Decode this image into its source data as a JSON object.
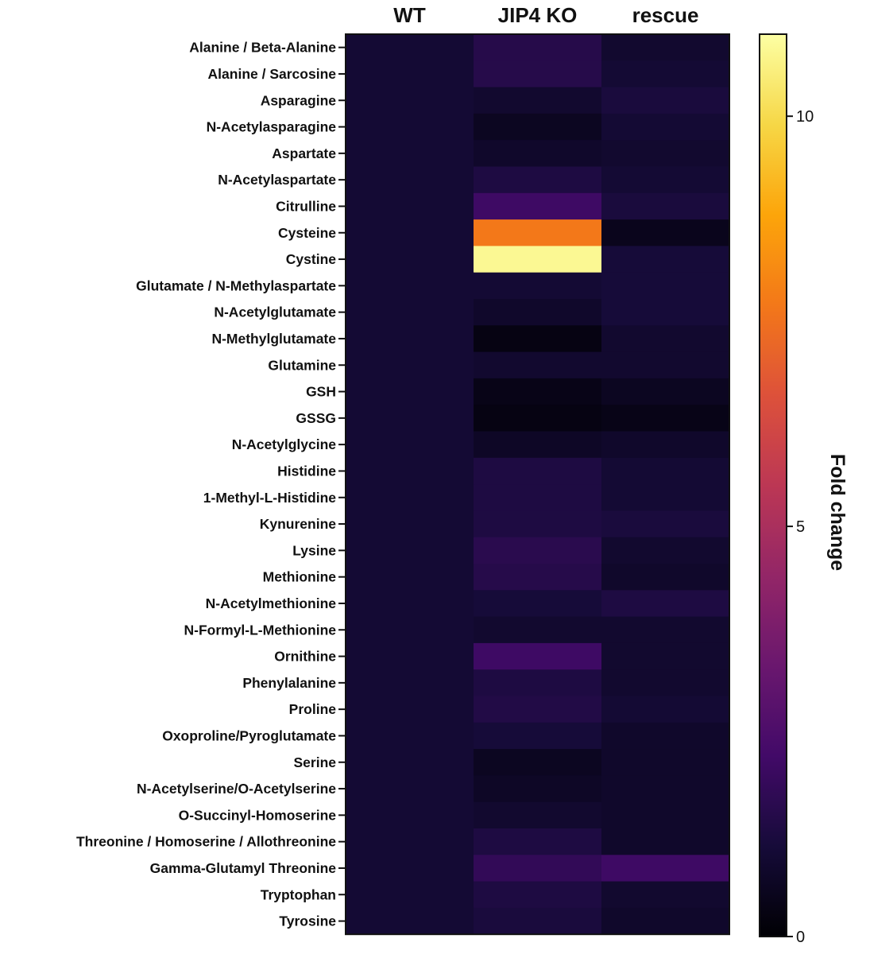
{
  "chart_data": {
    "type": "heatmap",
    "title": "",
    "columns": [
      "WT",
      "JIP4 KO",
      "rescue"
    ],
    "rows": [
      "Alanine / Beta-Alanine",
      "Alanine / Sarcosine",
      "Asparagine",
      "N-Acetylasparagine",
      "Aspartate",
      "N-Acetylaspartate",
      "Citrulline",
      "Cysteine",
      "Cystine",
      "Glutamate / N-Methylaspartate",
      "N-Acetylglutamate",
      "N-Methylglutamate",
      "Glutamine",
      "GSH",
      "GSSG",
      "N-Acetylglycine",
      "Histidine",
      "1-Methyl-L-Histidine",
      "Kynurenine",
      "Lysine",
      "Methionine",
      "N-Acetylmethionine",
      "N-Formyl-L-Methionine",
      "Ornithine",
      "Phenylalanine",
      "Proline",
      "Oxoproline/Pyroglutamate",
      "Serine",
      "N-Acetylserine/O-Acetylserine",
      "O-Succinyl-Homoserine",
      "Threonine / Homoserine / Allothreonine",
      "Gamma-Glutamyl Threonine",
      "Tryptophan",
      "Tyrosine"
    ],
    "values": [
      [
        1.0,
        1.5,
        0.9
      ],
      [
        1.0,
        1.5,
        1.0
      ],
      [
        1.0,
        0.9,
        1.2
      ],
      [
        1.0,
        0.6,
        1.0
      ],
      [
        1.0,
        0.8,
        0.9
      ],
      [
        1.0,
        1.3,
        1.0
      ],
      [
        1.0,
        2.1,
        1.2
      ],
      [
        1.0,
        7.7,
        0.5
      ],
      [
        1.0,
        10.8,
        1.1
      ],
      [
        1.0,
        1.0,
        1.1
      ],
      [
        1.0,
        0.8,
        1.1
      ],
      [
        1.0,
        0.3,
        0.9
      ],
      [
        1.0,
        0.9,
        0.9
      ],
      [
        1.0,
        0.4,
        0.6
      ],
      [
        1.0,
        0.3,
        0.4
      ],
      [
        1.0,
        0.7,
        0.8
      ],
      [
        1.0,
        1.3,
        1.0
      ],
      [
        1.0,
        1.3,
        1.0
      ],
      [
        1.0,
        1.3,
        1.2
      ],
      [
        1.0,
        1.6,
        0.9
      ],
      [
        1.0,
        1.5,
        0.8
      ],
      [
        1.0,
        1.1,
        1.3
      ],
      [
        1.0,
        0.9,
        0.9
      ],
      [
        1.0,
        2.1,
        0.9
      ],
      [
        1.0,
        1.3,
        0.9
      ],
      [
        1.0,
        1.4,
        1.0
      ],
      [
        1.0,
        1.1,
        0.8
      ],
      [
        1.0,
        0.6,
        0.8
      ],
      [
        1.0,
        0.7,
        0.8
      ],
      [
        1.0,
        0.9,
        0.8
      ],
      [
        1.0,
        1.3,
        0.8
      ],
      [
        1.0,
        1.8,
        2.1
      ],
      [
        1.0,
        1.3,
        0.9
      ],
      [
        1.0,
        1.2,
        0.8
      ]
    ],
    "colorbar": {
      "label": "Fold change",
      "colormap": "inferno",
      "range": [
        0,
        11
      ],
      "ticks": [
        0,
        5,
        10
      ],
      "tick_labels": [
        "0",
        "5",
        "10"
      ],
      "position": "right"
    }
  },
  "colors": {
    "text": "#111111",
    "axis": "#111111"
  }
}
